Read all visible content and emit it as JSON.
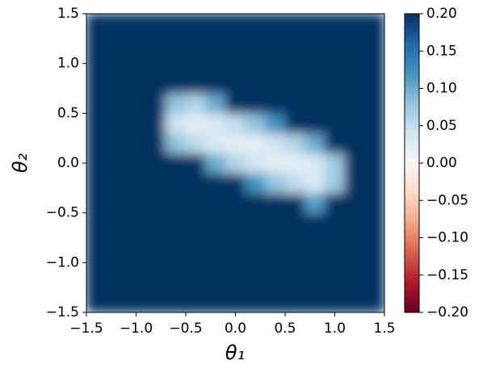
{
  "chart_data": {
    "type": "heatmap",
    "x_label": "θ₁",
    "y_label": "θ₂",
    "x": [
      -1.4,
      -1.2,
      -1.0,
      -0.8,
      -0.6,
      -0.4,
      -0.2,
      0,
      0.2,
      0.4,
      0.6,
      0.8,
      1.0,
      1.2,
      1.4
    ],
    "y": [
      -1.4,
      -1.2,
      -1.0,
      -0.8,
      -0.6,
      -0.4,
      -0.2,
      0,
      0.2,
      0.4,
      0.6,
      0.8,
      1.0,
      1.2,
      1.4
    ],
    "z": [
      [
        0.2,
        0.2,
        0.2,
        0.2,
        0.2,
        0.2,
        0.2,
        0.2,
        0.2,
        0.2,
        0.2,
        0.2,
        0.2,
        0.2,
        0.2
      ],
      [
        0.2,
        0.2,
        0.2,
        0.2,
        0.2,
        0.2,
        0.2,
        0.2,
        0.2,
        0.2,
        0.2,
        0.2,
        0.2,
        0.2,
        0.2
      ],
      [
        0.2,
        0.2,
        0.2,
        0.2,
        0.2,
        0.2,
        0.2,
        0.2,
        0.2,
        0.2,
        0.2,
        0.2,
        0.2,
        0.2,
        0.2
      ],
      [
        0.2,
        0.2,
        0.2,
        0.2,
        0.2,
        0.2,
        0.2,
        0.2,
        0.2,
        0.2,
        0.2,
        0.2,
        0.2,
        0.2,
        0.2
      ],
      [
        0.2,
        0.2,
        0.2,
        0.2,
        0.2,
        0.2,
        0.2,
        0.2,
        0.2,
        0.2,
        0.2,
        0.2,
        0.2,
        0.2,
        0.2
      ],
      [
        0.2,
        0.2,
        0.2,
        0.2,
        0.2,
        0.2,
        0.2,
        0.2,
        0.2,
        0.2,
        0.2,
        0.11,
        0.2,
        0.2,
        0.2
      ],
      [
        0.2,
        0.2,
        0.2,
        0.2,
        0.2,
        0.2,
        0.2,
        0.2,
        0.12,
        0.08,
        0.05,
        0.03,
        0.07,
        0.2,
        0.2
      ],
      [
        0.2,
        0.2,
        0.2,
        0.2,
        0.2,
        0.2,
        0.1,
        0.06,
        0.04,
        0.02,
        0.02,
        0.03,
        0.07,
        0.2,
        0.2
      ],
      [
        0.2,
        0.2,
        0.2,
        0.2,
        0.08,
        0.05,
        0.03,
        0.02,
        0.02,
        0.04,
        0.06,
        0.1,
        0.2,
        0.2,
        0.2
      ],
      [
        0.2,
        0.2,
        0.2,
        0.2,
        0.04,
        0.02,
        0.03,
        0.05,
        0.08,
        0.12,
        0.2,
        0.2,
        0.2,
        0.2,
        0.2
      ],
      [
        0.2,
        0.2,
        0.2,
        0.2,
        0.08,
        0.06,
        0.1,
        0.2,
        0.2,
        0.2,
        0.2,
        0.2,
        0.2,
        0.2,
        0.2
      ],
      [
        0.2,
        0.2,
        0.2,
        0.2,
        0.2,
        0.2,
        0.2,
        0.2,
        0.2,
        0.2,
        0.2,
        0.2,
        0.2,
        0.2,
        0.2
      ],
      [
        0.2,
        0.2,
        0.2,
        0.2,
        0.2,
        0.2,
        0.2,
        0.2,
        0.2,
        0.2,
        0.2,
        0.2,
        0.2,
        0.2,
        0.2
      ],
      [
        0.2,
        0.2,
        0.2,
        0.2,
        0.2,
        0.2,
        0.2,
        0.2,
        0.2,
        0.2,
        0.2,
        0.2,
        0.2,
        0.2,
        0.2
      ],
      [
        0.2,
        0.2,
        0.2,
        0.2,
        0.2,
        0.2,
        0.2,
        0.2,
        0.2,
        0.2,
        0.2,
        0.2,
        0.2,
        0.2,
        0.2
      ]
    ],
    "xlim": [
      -1.5,
      1.5
    ],
    "ylim": [
      -1.5,
      1.5
    ],
    "xticks": [
      {
        "value": -1.5,
        "label": "−1.5"
      },
      {
        "value": -1.0,
        "label": "−1.0"
      },
      {
        "value": -0.5,
        "label": "−0.5"
      },
      {
        "value": 0,
        "label": "0.0"
      },
      0.5,
      {
        "value": 1.0,
        "label": "1.0"
      },
      1.5
    ],
    "yticks": [
      {
        "value": -1.5,
        "label": "−1.5"
      },
      {
        "value": -1.0,
        "label": "−1.0"
      },
      {
        "value": -0.5,
        "label": "−0.5"
      },
      {
        "value": 0,
        "label": "0.0"
      },
      0.5,
      {
        "value": 1.0,
        "label": "1.0"
      },
      1.5
    ],
    "colormap": "RdBu",
    "clim": [
      -0.2,
      0.2
    ],
    "cticks": [
      {
        "value": -0.2,
        "label": "−0.20"
      },
      {
        "value": -0.15,
        "label": "−0.15"
      },
      {
        "value": -0.1,
        "label": "−0.10"
      },
      {
        "value": -0.05,
        "label": "−0.05"
      },
      {
        "value": 0,
        "label": "0.00"
      },
      0.05,
      {
        "value": 0.1,
        "label": "0.10"
      },
      0.15,
      {
        "value": 0.2,
        "label": "0.20"
      }
    ]
  }
}
